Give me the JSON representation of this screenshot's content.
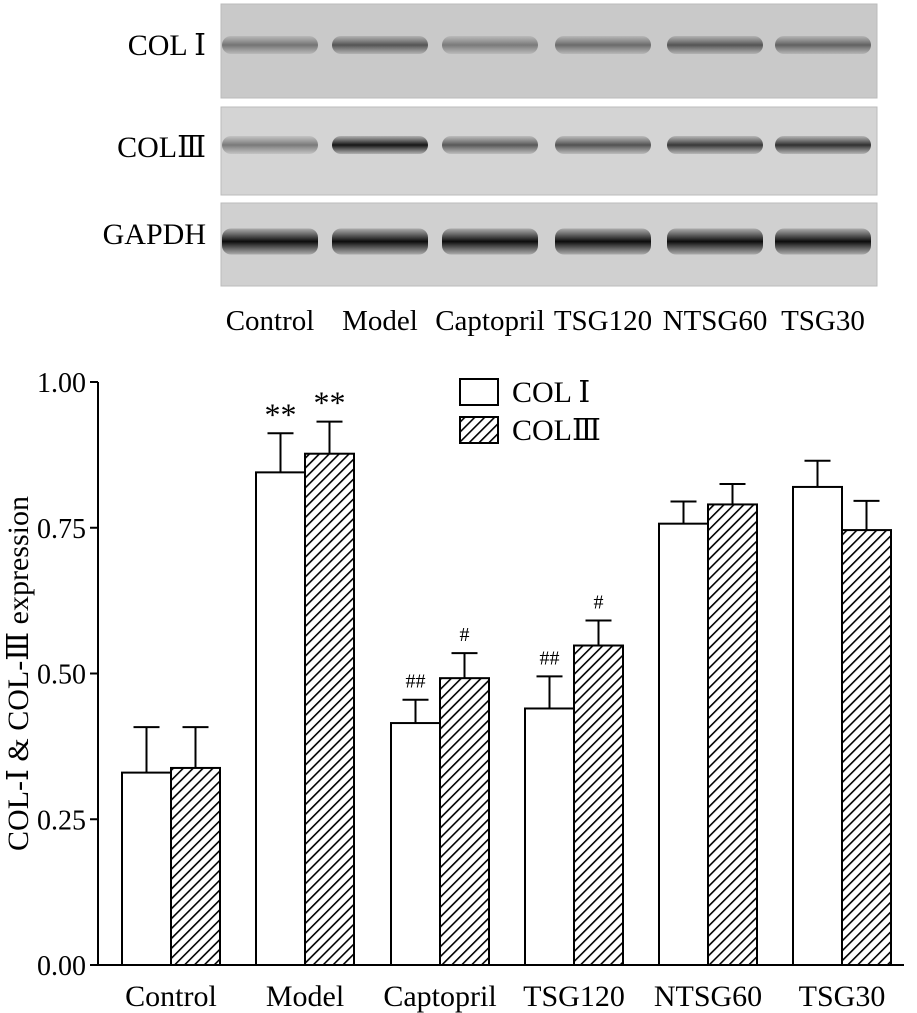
{
  "blot": {
    "rows": [
      {
        "label": "COL Ⅰ",
        "intensities": [
          0.45,
          0.62,
          0.42,
          0.5,
          0.62,
          0.55
        ]
      },
      {
        "label": "COLⅢ",
        "intensities": [
          0.45,
          0.95,
          0.62,
          0.65,
          0.78,
          0.82
        ]
      },
      {
        "label": "GAPDH",
        "intensities": [
          1.0,
          1.0,
          1.0,
          1.0,
          1.0,
          1.0
        ]
      }
    ],
    "lanes": [
      "Control",
      "Model",
      "Captopril",
      "TSG120",
      "NTSG60",
      "TSG30"
    ]
  },
  "chart_data": {
    "type": "bar",
    "categories": [
      "Control",
      "Model",
      "Captopril",
      "TSG120",
      "NTSG60",
      "TSG30"
    ],
    "ylabel": "COL-Ⅰ & COL-Ⅲ expression",
    "ylim": [
      0,
      1.0
    ],
    "yticks": [
      "0.00",
      "0.25",
      "0.50",
      "0.75",
      "1.00"
    ],
    "series": [
      {
        "name": "COL Ⅰ",
        "pattern": "open",
        "values": [
          0.33,
          0.845,
          0.415,
          0.44,
          0.757,
          0.82
        ],
        "errors": [
          0.078,
          0.067,
          0.04,
          0.055,
          0.038,
          0.045
        ],
        "annotations": [
          "",
          "**",
          "##",
          "##",
          "",
          ""
        ]
      },
      {
        "name": "COLⅢ",
        "pattern": "hatched",
        "values": [
          0.338,
          0.877,
          0.492,
          0.548,
          0.79,
          0.746
        ],
        "errors": [
          0.07,
          0.055,
          0.043,
          0.043,
          0.035,
          0.05
        ],
        "annotations": [
          "",
          "**",
          "#",
          "#",
          "",
          ""
        ]
      }
    ],
    "legend_position": "top-center",
    "colors": {
      "bar_fill_open": "#ffffff",
      "hatch": "#000000",
      "stroke": "#000000"
    }
  }
}
